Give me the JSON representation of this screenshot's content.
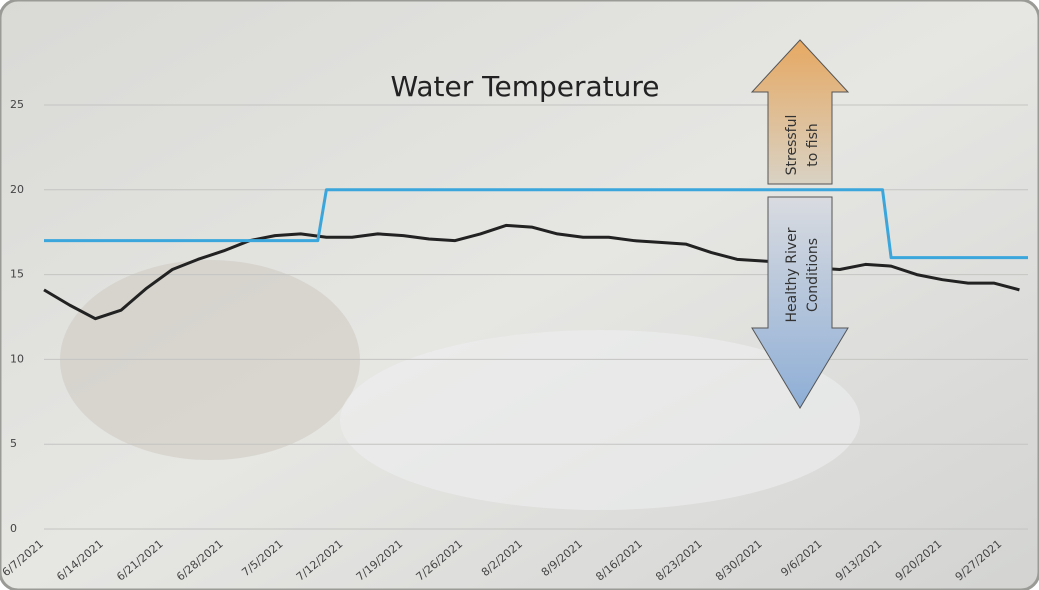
{
  "chart_data": {
    "type": "line",
    "title": "Water Temperature",
    "ylim": [
      0,
      25
    ],
    "yticks": [
      0,
      5,
      10,
      15,
      20,
      25
    ],
    "grid": true,
    "xlim": [
      "6/7/2021",
      "9/30/2021"
    ],
    "xticks": [
      "6/7/2021",
      "6/14/2021",
      "6/21/2021",
      "6/28/2021",
      "7/5/2021",
      "7/12/2021",
      "7/19/2021",
      "7/26/2021",
      "8/2/2021",
      "8/9/2021",
      "8/16/2021",
      "8/23/2021",
      "8/30/2021",
      "9/6/2021",
      "9/13/2021",
      "9/20/2021",
      "9/27/2021"
    ],
    "series": [
      {
        "color": "#222222",
        "x": [
          "6/7/2021",
          "6/10/2021",
          "6/13/2021",
          "6/16/2021",
          "6/19/2021",
          "6/22/2021",
          "6/25/2021",
          "6/28/2021",
          "7/1/2021",
          "7/4/2021",
          "7/7/2021",
          "7/10/2021",
          "7/13/2021",
          "7/16/2021",
          "7/19/2021",
          "7/22/2021",
          "7/25/2021",
          "7/28/2021",
          "7/31/2021",
          "8/3/2021",
          "8/6/2021",
          "8/9/2021",
          "8/12/2021",
          "8/15/2021",
          "8/18/2021",
          "8/21/2021",
          "8/24/2021",
          "8/27/2021",
          "8/30/2021",
          "9/2/2021",
          "9/5/2021",
          "9/8/2021",
          "9/11/2021",
          "9/14/2021",
          "9/17/2021",
          "9/20/2021",
          "9/23/2021",
          "9/26/2021",
          "9/29/2021"
        ],
        "values": [
          14.1,
          13.2,
          12.4,
          12.9,
          14.2,
          15.3,
          15.9,
          16.4,
          17.0,
          17.3,
          17.4,
          17.2,
          17.2,
          17.4,
          17.3,
          17.1,
          17.0,
          17.4,
          17.9,
          17.8,
          17.4,
          17.2,
          17.2,
          17.0,
          16.9,
          16.8,
          16.3,
          15.9,
          15.8,
          15.7,
          15.4,
          15.3,
          15.6,
          15.5,
          15.0,
          14.7,
          14.5,
          14.5,
          14.1
        ]
      },
      {
        "color": "#3aa6dc",
        "x": [
          "6/7/2021",
          "7/9/2021",
          "7/10/2021",
          "9/13/2021",
          "9/14/2021",
          "9/30/2021"
        ],
        "values": [
          17,
          17,
          20,
          20,
          16,
          16
        ]
      }
    ],
    "annotations": [
      {
        "lines": [
          "Stressful",
          "to fish"
        ]
      },
      {
        "lines": [
          "Healthy River",
          "Conditions"
        ]
      }
    ]
  }
}
